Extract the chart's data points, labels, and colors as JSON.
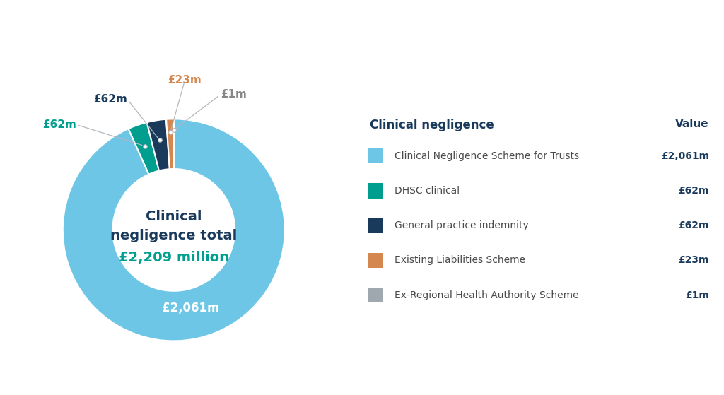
{
  "title_line1": "Clinical",
  "title_line2": "negligence total",
  "title_line3": "£2,209 million",
  "title_color1": "#1a3a5c",
  "title_color3": "#009e8e",
  "segments": [
    2061,
    62,
    62,
    23,
    1
  ],
  "colors": [
    "#6ec6e6",
    "#009e8e",
    "#1a3a5c",
    "#d4874e",
    "#9ea8ae"
  ],
  "labels": [
    "£2,061m",
    "£62m",
    "£62m",
    "£23m",
    "£1m"
  ],
  "label_colors": [
    "#ffffff",
    "#009e8e",
    "#1a3a5c",
    "#d4874e",
    "#888888"
  ],
  "legend_title": "Clinical negligence",
  "legend_title_color": "#1a3a5c",
  "value_col_title": "Value",
  "value_col_color": "#1a3a5c",
  "legend_items": [
    {
      "label": "Clinical Negligence Scheme for Trusts",
      "value": "£2,061m",
      "color": "#6ec6e6"
    },
    {
      "label": "DHSC clinical",
      "value": "£62m",
      "color": "#009e8e"
    },
    {
      "label": "General practice indemnity",
      "value": "£62m",
      "color": "#1a3a5c"
    },
    {
      "label": "Existing Liabilities Scheme",
      "value": "£23m",
      "color": "#d4874e"
    },
    {
      "label": "Ex-Regional Health Authority Scheme",
      "value": "£1m",
      "color": "#9ea8ae"
    }
  ],
  "bg_color": "#ffffff"
}
